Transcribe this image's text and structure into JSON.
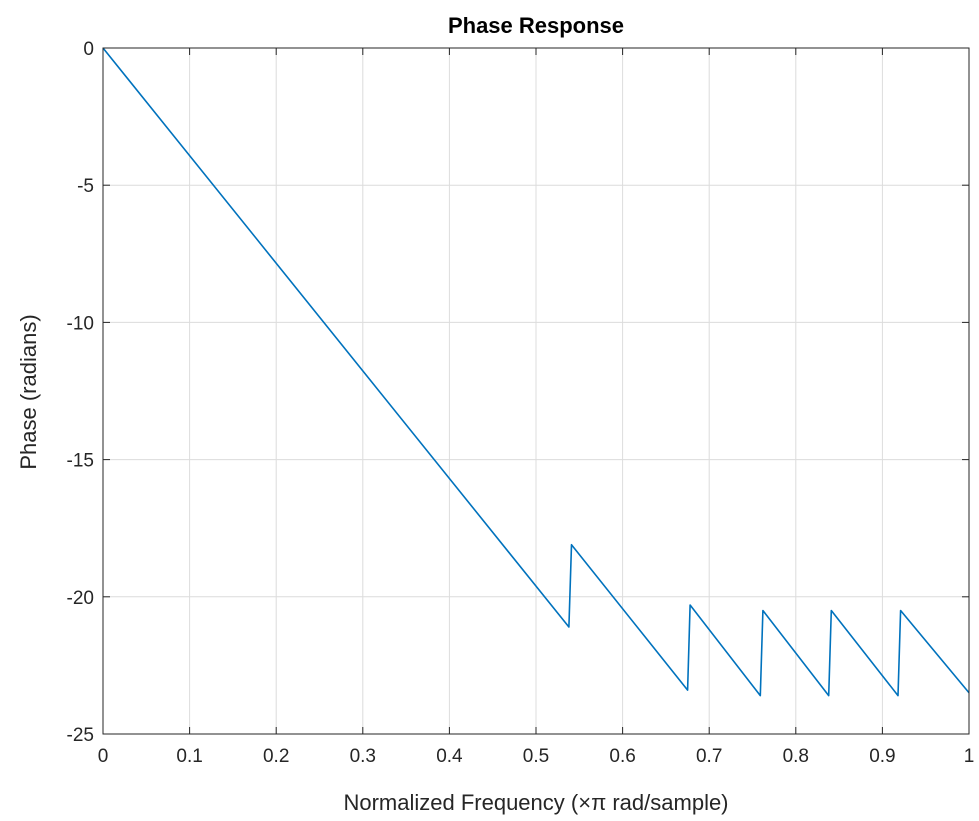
{
  "chart_data": {
    "type": "line",
    "title": "Phase Response",
    "xlabel": "Normalized Frequency  (×π rad/sample)",
    "ylabel": "Phase (radians)",
    "xlim": [
      0,
      1
    ],
    "ylim": [
      -25,
      0
    ],
    "xticks": [
      0,
      0.1,
      0.2,
      0.3,
      0.4,
      0.5,
      0.6,
      0.7,
      0.8,
      0.9,
      1
    ],
    "xtick_labels": [
      "0",
      "0.1",
      "0.2",
      "0.3",
      "0.4",
      "0.5",
      "0.6",
      "0.7",
      "0.8",
      "0.9",
      "1"
    ],
    "yticks": [
      0,
      -5,
      -10,
      -15,
      -20,
      -25
    ],
    "ytick_labels": [
      "0",
      "-5",
      "-10",
      "-15",
      "-20",
      "-25"
    ],
    "grid": true,
    "series": [
      {
        "color": "#0072BD",
        "x": [
          0,
          0.538,
          0.541,
          0.675,
          0.678,
          0.759,
          0.762,
          0.838,
          0.841,
          0.918,
          0.921,
          1.0
        ],
        "y": [
          0,
          -21.1,
          -18.1,
          -23.4,
          -20.3,
          -23.6,
          -20.5,
          -23.6,
          -20.5,
          -23.6,
          -20.5,
          -23.5
        ]
      }
    ]
  }
}
